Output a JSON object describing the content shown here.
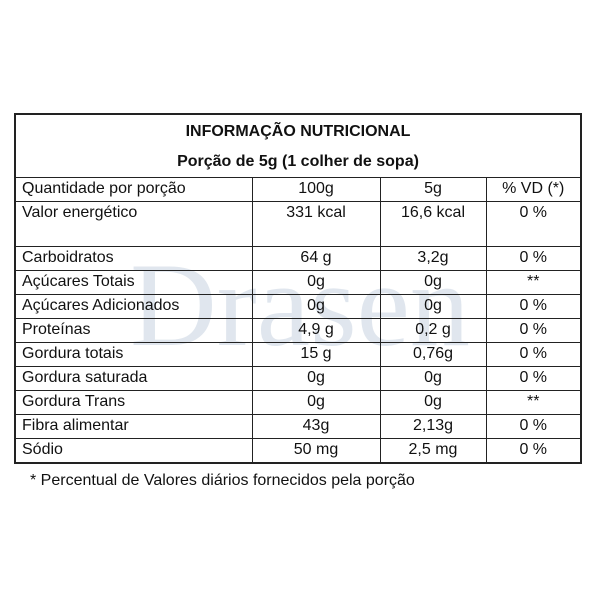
{
  "label": {
    "title": "INFORMAÇÃO NUTRICIONAL",
    "portion": "Porção de 5g (1 colher de sopa)",
    "header": [
      "Quantidade por porção",
      "100g",
      "5g",
      "% VD (*)"
    ],
    "rows": [
      [
        "Valor energético",
        "331 kcal",
        "16,6 kcal",
        "0 %"
      ],
      [
        "Carboidratos",
        "64 g",
        "3,2g",
        "0 %"
      ],
      [
        "Açúcares Totais",
        "0g",
        "0g",
        "**"
      ],
      [
        "Açúcares Adicionados",
        "0g",
        "0g",
        "0 %"
      ],
      [
        "Proteínas",
        "4,9 g",
        "0,2 g",
        "0 %"
      ],
      [
        "Gordura totais",
        "15 g",
        "0,76g",
        "0 %"
      ],
      [
        "Gordura saturada",
        "0g",
        "0g",
        "0 %"
      ],
      [
        "Gordura Trans",
        "0g",
        "0g",
        "**"
      ],
      [
        "Fibra alimentar",
        "43g",
        "2,13g",
        "0 %"
      ],
      [
        "Sódio",
        "50 mg",
        "2,5 mg",
        "0 %"
      ]
    ],
    "footnote": "* Percentual de Valores diários fornecidos pela porção"
  },
  "watermark": {
    "text": "Drasen",
    "color": "#d9e1ea"
  }
}
